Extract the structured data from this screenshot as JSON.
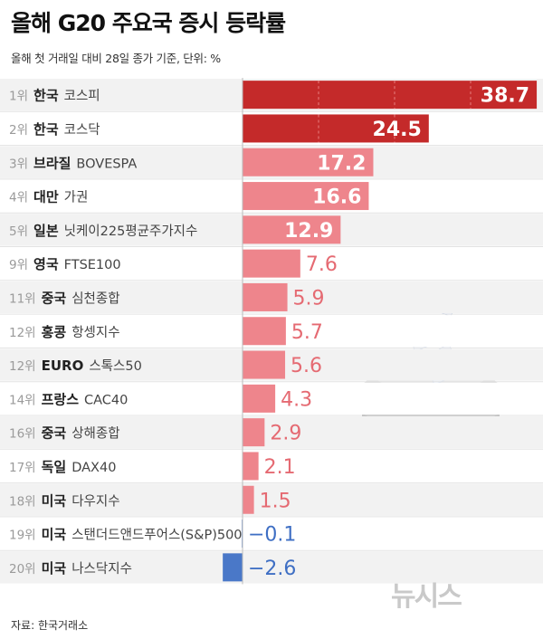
{
  "title": "올해 G20 주요국 증시 등락률",
  "subtitle": "올해 첫 거래일 대비 28일 종가 기준, 단위: %",
  "source": "자료: 한국거래소",
  "logo": "뉴시스",
  "colors": {
    "top": "#c42a2a",
    "positive": "#ee858c",
    "negative": "#4a78c8",
    "top_label": "#ffffff",
    "mid_label": "#ffffff",
    "pos_label": "#e56a72",
    "neg_label": "#3f6fc4"
  },
  "chart_data": {
    "type": "bar",
    "orientation": "horizontal",
    "unit": "%",
    "bars": [
      {
        "rank": "1위",
        "country": "한국",
        "index": "코스피",
        "value": 38.7,
        "label": "38.7"
      },
      {
        "rank": "2위",
        "country": "한국",
        "index": "코스닥",
        "value": 24.5,
        "label": "24.5"
      },
      {
        "rank": "3위",
        "country": "브라질",
        "index": "BOVESPA",
        "value": 17.2,
        "label": "17.2"
      },
      {
        "rank": "4위",
        "country": "대만",
        "index": "가권",
        "value": 16.6,
        "label": "16.6"
      },
      {
        "rank": "5위",
        "country": "일본",
        "index": "닛케이225평균주가지수",
        "value": 12.9,
        "label": "12.9"
      },
      {
        "rank": "9위",
        "country": "영국",
        "index": "FTSE100",
        "value": 7.6,
        "label": "7.6"
      },
      {
        "rank": "11위",
        "country": "중국",
        "index": "심천종합",
        "value": 5.9,
        "label": "5.9"
      },
      {
        "rank": "12위",
        "country": "홍콩",
        "index": "항셍지수",
        "value": 5.7,
        "label": "5.7"
      },
      {
        "rank": "12위",
        "country": "EURO",
        "index": "스톡스50",
        "value": 5.6,
        "label": "5.6"
      },
      {
        "rank": "14위",
        "country": "프랑스",
        "index": "CAC40",
        "value": 4.3,
        "label": "4.3"
      },
      {
        "rank": "16위",
        "country": "중국",
        "index": "상해종합",
        "value": 2.9,
        "label": "2.9"
      },
      {
        "rank": "17위",
        "country": "독일",
        "index": "DAX40",
        "value": 2.1,
        "label": "2.1"
      },
      {
        "rank": "18위",
        "country": "미국",
        "index": "다우지수",
        "value": 1.5,
        "label": "1.5"
      },
      {
        "rank": "19위",
        "country": "미국",
        "index": "스탠더드앤드푸어스(S&P)500",
        "value": -0.1,
        "label": "−0.1"
      },
      {
        "rank": "20위",
        "country": "미국",
        "index": "나스닥지수",
        "value": -2.6,
        "label": "−2.6"
      }
    ]
  }
}
